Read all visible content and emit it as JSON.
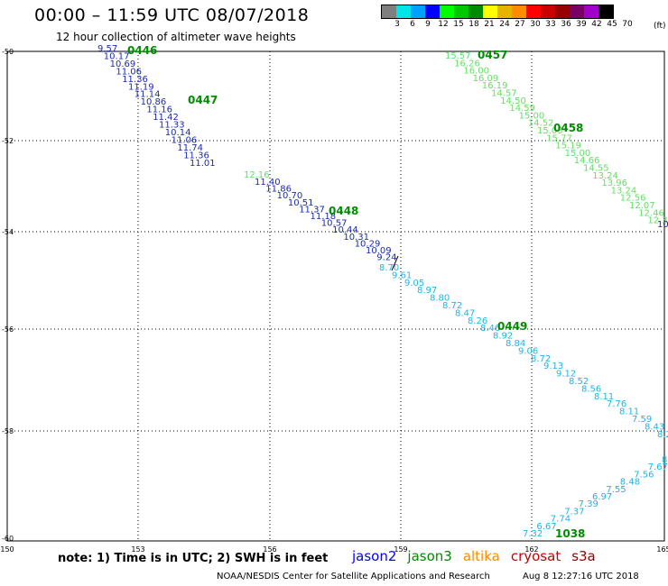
{
  "header": {
    "title": "00:00 – 11:59 UTC 08/07/2018",
    "subtitle": "12 hour collection of altimeter wave heights"
  },
  "legend": {
    "colors": [
      "#7f7f7f",
      "#00e6e6",
      "#00a0ff",
      "#0000ff",
      "#00ff00",
      "#00c800",
      "#008c00",
      "#ffff00",
      "#e6b400",
      "#ff8c00",
      "#ff0000",
      "#c80000",
      "#960000",
      "#780064",
      "#a000c8",
      "#000000"
    ],
    "labels": [
      "3",
      "6",
      "9",
      "12",
      "15",
      "18",
      "21",
      "24",
      "27",
      "30",
      "33",
      "36",
      "39",
      "42",
      "45",
      "70"
    ],
    "unit": "(ft)"
  },
  "axes": {
    "lon_labels": [
      "150",
      "153",
      "156",
      "159",
      "162",
      "165"
    ],
    "lat_labels": [
      "-50",
      "-52",
      "-54",
      "-56",
      "-58",
      "-60"
    ]
  },
  "tracks": [
    {
      "id": "t1",
      "time": "0446",
      "color": "#1a2ab4",
      "points": [
        "9.57",
        "10.17",
        "10.69",
        "11.06",
        "11.36",
        "11.19",
        "11.14",
        "10.86",
        "11.16",
        "11.42",
        "11.33",
        "10.14",
        "11.06",
        "11.74",
        "11.36",
        "11.01"
      ]
    },
    {
      "id": "t1g",
      "time": "",
      "color": "#66dd66",
      "points": [
        "12.16"
      ]
    },
    {
      "id": "t1b",
      "time": "",
      "color": "#1a2ab4",
      "points": [
        "11.40",
        "11.86",
        "10.70",
        "10.51",
        "11.37",
        "11.18",
        "10.57",
        "10.44",
        "10.31",
        "10.29",
        "10.09",
        "9.24"
      ]
    },
    {
      "id": "t2",
      "time": "0457",
      "color": "#66dd66",
      "points": [
        "15.57",
        "16.26",
        "16.00",
        "16.09",
        "16.19",
        "14.57",
        "14.50",
        "14.59",
        "15.00",
        "14.52",
        "15.03",
        "15.77",
        "15.19",
        "15.00",
        "14.66",
        "14.55",
        "13.24",
        "13.96",
        "13.24",
        "12.56",
        "12.07",
        "12.46",
        "12.35"
      ]
    },
    {
      "id": "t3",
      "time": "0449",
      "color": "#20b4e6",
      "points": [
        "8.70",
        "9.61",
        "9.05",
        "8.97",
        "8.80",
        "8.72",
        "8.47",
        "8.26",
        "8.46",
        "8.92",
        "8.84",
        "9.06",
        "8.72",
        "9.13",
        "9.12",
        "8.52",
        "8.56",
        "8.11",
        "7.76",
        "8.11",
        "7.59",
        "8.43",
        "8.29",
        "8.78",
        "9.1"
      ]
    },
    {
      "id": "t4",
      "time": "1038",
      "color": "#20b4e6",
      "points": [
        "7.32",
        "6.67",
        "7.74",
        "7.37",
        "7.39",
        "6.97",
        "7.55",
        "8.48",
        "7.56",
        "7.67",
        "8."
      ]
    }
  ],
  "time_labels": [
    "0446",
    "0447",
    "0448",
    "0449",
    "0457",
    "0458",
    "1038"
  ],
  "note": "note: 1) Time is in UTC; 2) SWH is in feet",
  "satellites": [
    {
      "name": "jason2",
      "color": "#0000ff"
    },
    {
      "name": "jason3",
      "color": "#008c00"
    },
    {
      "name": "altika",
      "color": "#ff8c00"
    },
    {
      "name": "cryosat",
      "color": "#c80000"
    },
    {
      "name": "s3a",
      "color": "#960000"
    }
  ],
  "footer": {
    "credit": "NOAA/NESDIS Center for Satellite Applications and Research",
    "timestamp": "Aug  8 12:27:16 UTC 2018"
  },
  "edge_value": "10"
}
